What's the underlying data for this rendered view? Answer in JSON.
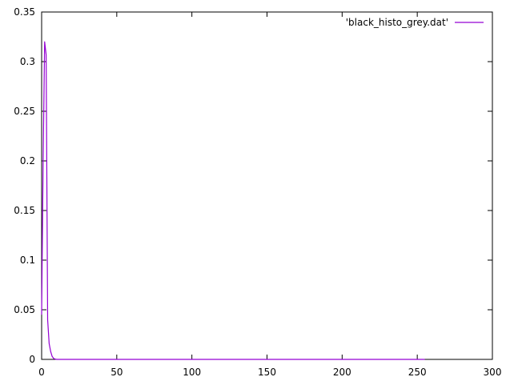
{
  "chart_data": {
    "type": "line",
    "title": "",
    "xlabel": "",
    "ylabel": "",
    "xlim": [
      0,
      300
    ],
    "ylim": [
      0,
      0.35
    ],
    "grid": false,
    "legend_position": "top-right",
    "x_ticks": [
      {
        "value": 0,
        "label": "0"
      },
      {
        "value": 50,
        "label": "50"
      },
      {
        "value": 100,
        "label": "100"
      },
      {
        "value": 150,
        "label": "150"
      },
      {
        "value": 200,
        "label": "200"
      },
      {
        "value": 250,
        "label": "250"
      },
      {
        "value": 300,
        "label": "300"
      }
    ],
    "y_ticks": [
      {
        "value": 0,
        "label": "0"
      },
      {
        "value": 0.05,
        "label": "0.05"
      },
      {
        "value": 0.1,
        "label": "0.1"
      },
      {
        "value": 0.15,
        "label": "0.15"
      },
      {
        "value": 0.2,
        "label": "0.2"
      },
      {
        "value": 0.25,
        "label": "0.25"
      },
      {
        "value": 0.3,
        "label": "0.3"
      },
      {
        "value": 0.35,
        "label": "0.35"
      }
    ],
    "series": [
      {
        "name": "'black_histo_grey.dat'",
        "color": "#9400d3",
        "x": [
          0,
          1,
          2,
          3,
          4,
          5,
          6,
          7,
          8,
          9,
          10,
          20,
          50,
          100,
          150,
          200,
          255
        ],
        "y": [
          0.045,
          0.2,
          0.32,
          0.307,
          0.04,
          0.016,
          0.008,
          0.003,
          0.001,
          0.0003,
          0,
          0,
          0,
          0,
          0,
          0,
          0
        ]
      }
    ]
  }
}
